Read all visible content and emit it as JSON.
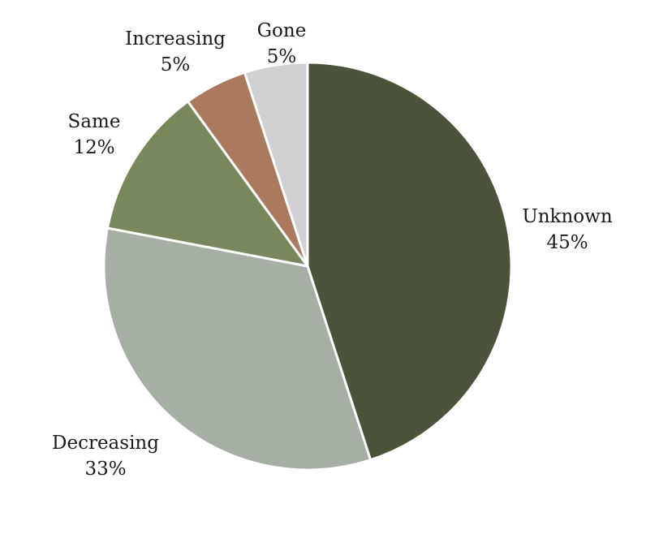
{
  "chart_data": {
    "type": "pie",
    "title": "",
    "start_angle_deg": 90,
    "direction": "clockwise",
    "slices": [
      {
        "label": "Unknown",
        "value": 45,
        "display": "45%",
        "color": "#4B533A"
      },
      {
        "label": "Decreasing",
        "value": 33,
        "display": "33%",
        "color": "#A5AFA3"
      },
      {
        "label": "Same",
        "value": 12,
        "display": "12%",
        "color": "#78885C"
      },
      {
        "label": "Increasing",
        "value": 5,
        "display": "5%",
        "color": "#AB7A5E"
      },
      {
        "label": "Gone",
        "value": 5,
        "display": "5%",
        "color": "#D1CFD1"
      }
    ]
  }
}
